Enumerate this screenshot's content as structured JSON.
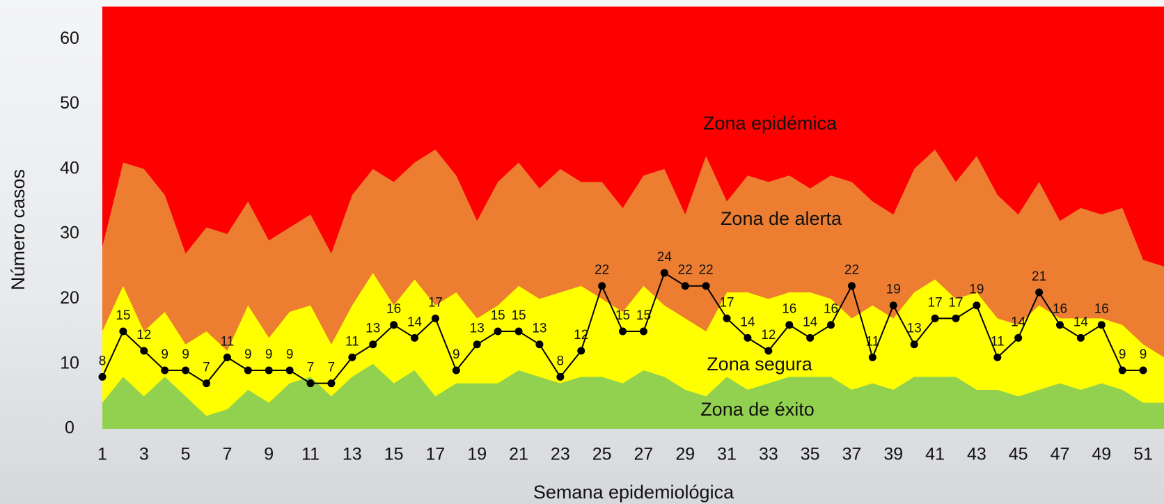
{
  "chart_data": {
    "type": "endemic-channel",
    "x_label": "Semana epidemiológica",
    "y_label": "Número casos",
    "categories": [
      "1",
      null,
      "3",
      null,
      "5",
      null,
      "7",
      null,
      "9",
      null,
      "11",
      null,
      "13",
      null,
      "15",
      null,
      "17",
      null,
      "19",
      null,
      "21",
      null,
      "23",
      null,
      "25",
      null,
      "27",
      null,
      "29",
      null,
      "31",
      null,
      "33",
      null,
      "35",
      null,
      "37",
      null,
      "39",
      null,
      "41",
      null,
      "43",
      null,
      "45",
      null,
      "47",
      null,
      "49",
      null,
      "51",
      null
    ],
    "ylim": [
      0,
      65
    ],
    "yticks": [
      0,
      10,
      20,
      30,
      40,
      50,
      60
    ],
    "epidemic_zone": {
      "name": "Zona epidémica",
      "color": "#ff0000"
    },
    "zones": [
      {
        "name": "Zona de alerta",
        "color": "#ed7d31",
        "values": [
          28,
          41,
          40,
          36,
          27,
          31,
          30,
          35,
          29,
          31,
          33,
          27,
          36,
          40,
          38,
          41,
          43,
          39,
          32,
          38,
          41,
          37,
          40,
          38,
          38,
          34,
          39,
          40,
          33,
          42,
          35,
          39,
          38,
          39,
          37,
          39,
          38,
          35,
          33,
          40,
          43,
          38,
          42,
          36,
          33,
          38,
          32,
          34,
          33,
          34,
          26,
          25
        ]
      },
      {
        "name": "Zona segura",
        "color": "#ffff00",
        "values": [
          15,
          22,
          15,
          18,
          13,
          15,
          12,
          19,
          14,
          18,
          19,
          13,
          19,
          24,
          19,
          23,
          19,
          21,
          17,
          19,
          22,
          20,
          21,
          22,
          20,
          18,
          22,
          19,
          17,
          15,
          21,
          21,
          20,
          21,
          21,
          20,
          17,
          19,
          17,
          21,
          23,
          20,
          21,
          17,
          16,
          19,
          17,
          17,
          17,
          16,
          13,
          11
        ]
      },
      {
        "name": "Zona de éxito",
        "color": "#92d050",
        "values": [
          4,
          8,
          5,
          8,
          5,
          2,
          3,
          6,
          4,
          7,
          8,
          5,
          8,
          10,
          7,
          9,
          5,
          7,
          7,
          7,
          9,
          8,
          7,
          8,
          8,
          7,
          9,
          8,
          6,
          5,
          8,
          6,
          7,
          8,
          8,
          8,
          6,
          7,
          6,
          8,
          8,
          8,
          6,
          6,
          5,
          6,
          7,
          6,
          7,
          6,
          4,
          4
        ]
      }
    ],
    "series": [
      {
        "color": "#000000",
        "values": [
          8,
          15,
          12,
          9,
          9,
          7,
          11,
          9,
          9,
          9,
          7,
          7,
          11,
          13,
          16,
          14,
          17,
          9,
          13,
          15,
          15,
          13,
          8,
          12,
          22,
          15,
          15,
          24,
          22,
          22,
          17,
          14,
          12,
          16,
          14,
          16,
          22,
          11,
          19,
          13,
          17,
          17,
          19,
          11,
          14,
          21,
          16,
          14,
          16,
          9,
          9,
          null
        ]
      }
    ]
  }
}
